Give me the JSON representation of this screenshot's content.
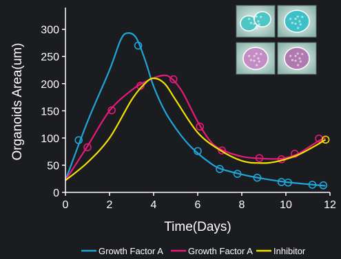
{
  "chart_data": {
    "type": "line",
    "xlabel": "Time(Days)",
    "ylabel": "Organoids Area(um)",
    "xlim": [
      0,
      12
    ],
    "ylim": [
      0,
      340
    ],
    "xticks": [
      0,
      2,
      4,
      6,
      8,
      10,
      12
    ],
    "yticks": [
      0,
      50,
      100,
      150,
      200,
      250,
      300
    ],
    "grid": false,
    "legend_position": "bottom",
    "background": "#1b1c20",
    "series": [
      {
        "name": "Growth Factor A",
        "color": "#1ea7d8",
        "curve": [
          [
            0,
            22
          ],
          [
            1,
            130
          ],
          [
            2,
            225
          ],
          [
            2.5,
            280
          ],
          [
            2.8,
            293
          ],
          [
            3.2,
            285
          ],
          [
            3.6,
            245
          ],
          [
            4,
            195
          ],
          [
            4.5,
            150
          ],
          [
            5,
            118
          ],
          [
            5.5,
            92
          ],
          [
            6,
            72
          ],
          [
            6.5,
            56
          ],
          [
            7,
            44
          ],
          [
            8,
            33
          ],
          [
            9,
            25
          ],
          [
            10,
            19
          ],
          [
            11,
            15
          ],
          [
            11.8,
            12
          ]
        ],
        "points": [
          [
            0.6,
            96
          ],
          [
            3.3,
            270
          ],
          [
            6,
            76
          ],
          [
            7,
            43
          ],
          [
            7.8,
            34
          ],
          [
            8.7,
            27
          ],
          [
            9.8,
            19
          ],
          [
            10.1,
            18
          ],
          [
            11.2,
            14
          ],
          [
            11.7,
            13
          ]
        ]
      },
      {
        "name": "Growth Factor A",
        "color": "#e8197c",
        "curve": [
          [
            0,
            22
          ],
          [
            1,
            85
          ],
          [
            2,
            150
          ],
          [
            3,
            188
          ],
          [
            3.7,
            205
          ],
          [
            4.4,
            215
          ],
          [
            4.8,
            210
          ],
          [
            5.3,
            185
          ],
          [
            6,
            130
          ],
          [
            6.5,
            98
          ],
          [
            7,
            80
          ],
          [
            8,
            66
          ],
          [
            9,
            62
          ],
          [
            9.8,
            62
          ],
          [
            10.5,
            70
          ],
          [
            11,
            82
          ],
          [
            11.5,
            95
          ],
          [
            11.8,
            100
          ]
        ],
        "points": [
          [
            1,
            83
          ],
          [
            2.1,
            151
          ],
          [
            3.4,
            196
          ],
          [
            4.9,
            208
          ],
          [
            6.1,
            121
          ],
          [
            7.1,
            77
          ],
          [
            8.8,
            63
          ],
          [
            9.8,
            61
          ],
          [
            10.4,
            71
          ],
          [
            11.5,
            99
          ]
        ]
      },
      {
        "name": "Inhibitor",
        "color": "#f5e100",
        "curve": [
          [
            0,
            22
          ],
          [
            1,
            55
          ],
          [
            2,
            100
          ],
          [
            3,
            170
          ],
          [
            3.6,
            200
          ],
          [
            4,
            210
          ],
          [
            4.5,
            200
          ],
          [
            5,
            170
          ],
          [
            6,
            110
          ],
          [
            7,
            78
          ],
          [
            8,
            58
          ],
          [
            8.8,
            54
          ],
          [
            9.5,
            56
          ],
          [
            10.5,
            68
          ],
          [
            11.3,
            85
          ],
          [
            11.8,
            97
          ]
        ],
        "points": [
          [
            11.8,
            97
          ]
        ]
      }
    ],
    "marker_size": 5
  },
  "thumbnails": [
    {
      "name": "organoid-cyan-dumbbell",
      "tint": "#4fc6c6"
    },
    {
      "name": "organoid-cyan-round",
      "tint": "#3ec0c8"
    },
    {
      "name": "organoid-pink-purple",
      "tint": "#c48cc4"
    },
    {
      "name": "organoid-pink-round",
      "tint": "#b07ab0"
    }
  ]
}
